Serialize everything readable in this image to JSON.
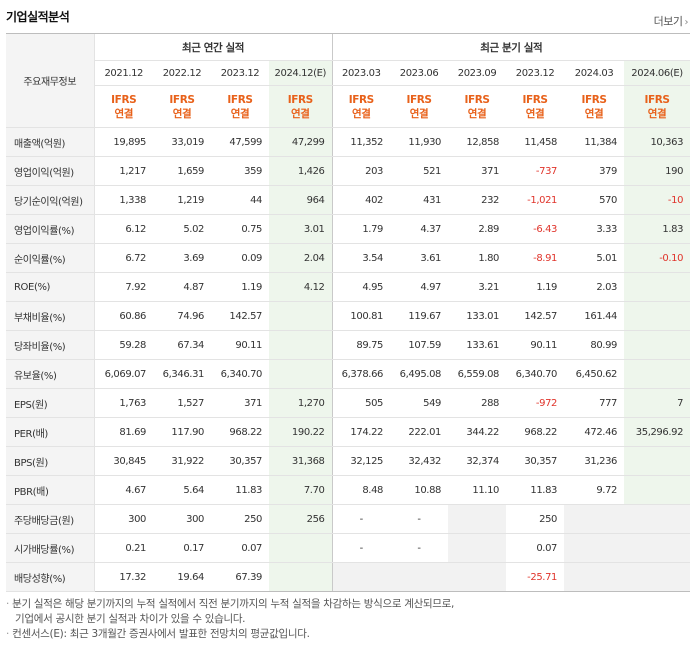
{
  "title": "기업실적분석",
  "more_label": "더보기",
  "corner_label": "주요재무정보",
  "groups": {
    "annual": "최근 연간 실적",
    "quarter": "최근 분기 실적"
  },
  "periods": [
    "2021.12",
    "2022.12",
    "2023.12",
    "2024.12(E)",
    "2023.03",
    "2023.06",
    "2023.09",
    "2023.12",
    "2024.03",
    "2024.06(E)"
  ],
  "ifrs": {
    "top": "IFRS",
    "bottom": "연결"
  },
  "rows": [
    {
      "label": "매출액(억원)",
      "values": [
        "19,895",
        "33,019",
        "47,599",
        "47,299",
        "11,352",
        "11,930",
        "12,858",
        "11,458",
        "11,384",
        "10,363"
      ]
    },
    {
      "label": "영업이익(억원)",
      "values": [
        "1,217",
        "1,659",
        "359",
        "1,426",
        "203",
        "521",
        "371",
        "-737",
        "379",
        "190"
      ]
    },
    {
      "label": "당기순이익(억원)",
      "values": [
        "1,338",
        "1,219",
        "44",
        "964",
        "402",
        "431",
        "232",
        "-1,021",
        "570",
        "-10"
      ]
    },
    {
      "label": "영업이익률(%)",
      "values": [
        "6.12",
        "5.02",
        "0.75",
        "3.01",
        "1.79",
        "4.37",
        "2.89",
        "-6.43",
        "3.33",
        "1.83"
      ]
    },
    {
      "label": "순이익률(%)",
      "values": [
        "6.72",
        "3.69",
        "0.09",
        "2.04",
        "3.54",
        "3.61",
        "1.80",
        "-8.91",
        "5.01",
        "-0.10"
      ]
    },
    {
      "label": "ROE(%)",
      "values": [
        "7.92",
        "4.87",
        "1.19",
        "4.12",
        "4.95",
        "4.97",
        "3.21",
        "1.19",
        "2.03",
        ""
      ]
    },
    {
      "label": "부채비율(%)",
      "values": [
        "60.86",
        "74.96",
        "142.57",
        "",
        "100.81",
        "119.67",
        "133.01",
        "142.57",
        "161.44",
        ""
      ]
    },
    {
      "label": "당좌비율(%)",
      "values": [
        "59.28",
        "67.34",
        "90.11",
        "",
        "89.75",
        "107.59",
        "133.61",
        "90.11",
        "80.99",
        ""
      ]
    },
    {
      "label": "유보율(%)",
      "values": [
        "6,069.07",
        "6,346.31",
        "6,340.70",
        "",
        "6,378.66",
        "6,495.08",
        "6,559.08",
        "6,340.70",
        "6,450.62",
        ""
      ]
    },
    {
      "label": "EPS(원)",
      "values": [
        "1,763",
        "1,527",
        "371",
        "1,270",
        "505",
        "549",
        "288",
        "-972",
        "777",
        "7"
      ]
    },
    {
      "label": "PER(배)",
      "values": [
        "81.69",
        "117.90",
        "968.22",
        "190.22",
        "174.22",
        "222.01",
        "344.22",
        "968.22",
        "472.46",
        "35,296.92"
      ]
    },
    {
      "label": "BPS(원)",
      "values": [
        "30,845",
        "31,922",
        "30,357",
        "31,368",
        "32,125",
        "32,432",
        "32,374",
        "30,357",
        "31,236",
        ""
      ]
    },
    {
      "label": "PBR(배)",
      "values": [
        "4.67",
        "5.64",
        "11.83",
        "7.70",
        "8.48",
        "10.88",
        "11.10",
        "11.83",
        "9.72",
        ""
      ]
    },
    {
      "label": "주당배당금(원)",
      "values": [
        "300",
        "300",
        "250",
        "256",
        "-",
        "-",
        "",
        "250",
        "",
        ""
      ]
    },
    {
      "label": "시가배당률(%)",
      "values": [
        "0.21",
        "0.17",
        "0.07",
        "",
        "-",
        "-",
        "",
        "0.07",
        "",
        ""
      ]
    },
    {
      "label": "배당성향(%)",
      "values": [
        "17.32",
        "19.64",
        "67.39",
        "",
        "",
        "",
        "",
        "-25.71",
        "",
        ""
      ]
    }
  ],
  "notes": [
    "분기 실적은 해당 분기까지의 누적 실적에서 직전 분기까지의 누적 실적을 차감하는 방식으로 계산되므로,",
    "기업에서 공시한 분기 실적과 차이가 있을 수 있습니다.",
    "컨센서스(E): 최근 3개월간 증권사에서 발표한 전망치의 평균값입니다."
  ],
  "colors": {
    "ifrs": "#e8611a",
    "negative": "#e0342b",
    "estimate_bg": "#eef6ec"
  }
}
